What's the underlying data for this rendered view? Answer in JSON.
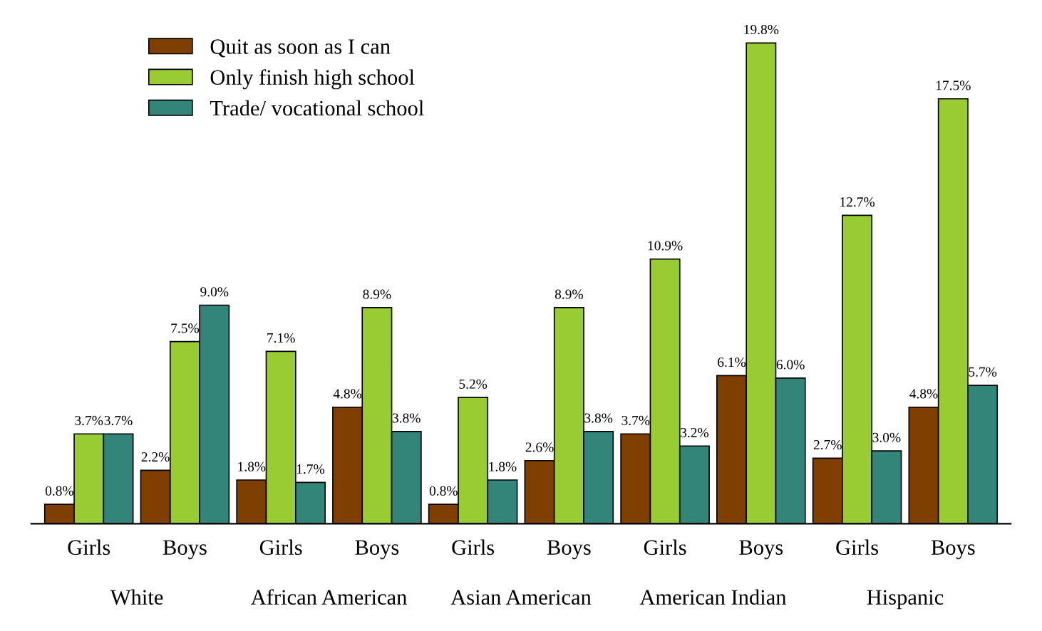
{
  "chart_data": {
    "type": "bar",
    "categories": [
      "Girls",
      "Boys",
      "Girls",
      "Boys",
      "Girls",
      "Boys",
      "Girls",
      "Boys",
      "Girls",
      "Boys"
    ],
    "annotations": [
      "White",
      "African American",
      "Asian American",
      "American Indian",
      "Hispanic"
    ],
    "series": [
      {
        "name": "Quit as soon as I can",
        "color": "#7f3f00",
        "values": [
          0.8,
          2.2,
          1.8,
          4.8,
          0.8,
          2.6,
          3.7,
          6.1,
          2.7,
          4.8
        ],
        "value_labels": [
          "0.8%",
          "2.2%",
          "1.8%",
          "4.8%",
          "0.8%",
          "2.6%",
          "3.7%",
          "6.1%",
          "2.7%",
          "4.8%"
        ]
      },
      {
        "name": "Only finish high school",
        "color": "#99cc33",
        "values": [
          3.7,
          7.5,
          7.1,
          8.9,
          5.2,
          8.9,
          10.9,
          19.8,
          12.7,
          17.5
        ],
        "value_labels": [
          "3.7%",
          "7.5%",
          "7.1%",
          "8.9%",
          "5.2%",
          "8.9%",
          "10.9%",
          "19.8%",
          "12.7%",
          "17.5%"
        ]
      },
      {
        "name": "Trade/ vocational school",
        "color": "#33857a",
        "values": [
          3.7,
          9.0,
          1.7,
          3.8,
          1.8,
          3.8,
          3.2,
          6.0,
          3.0,
          5.7
        ],
        "value_labels": [
          "3.7%",
          "9.0%",
          "1.7%",
          "3.8%",
          "1.8%",
          "3.8%",
          "3.2%",
          "6.0%",
          "3.0%",
          "5.7%"
        ]
      }
    ],
    "legend": "top left",
    "grid": false
  }
}
